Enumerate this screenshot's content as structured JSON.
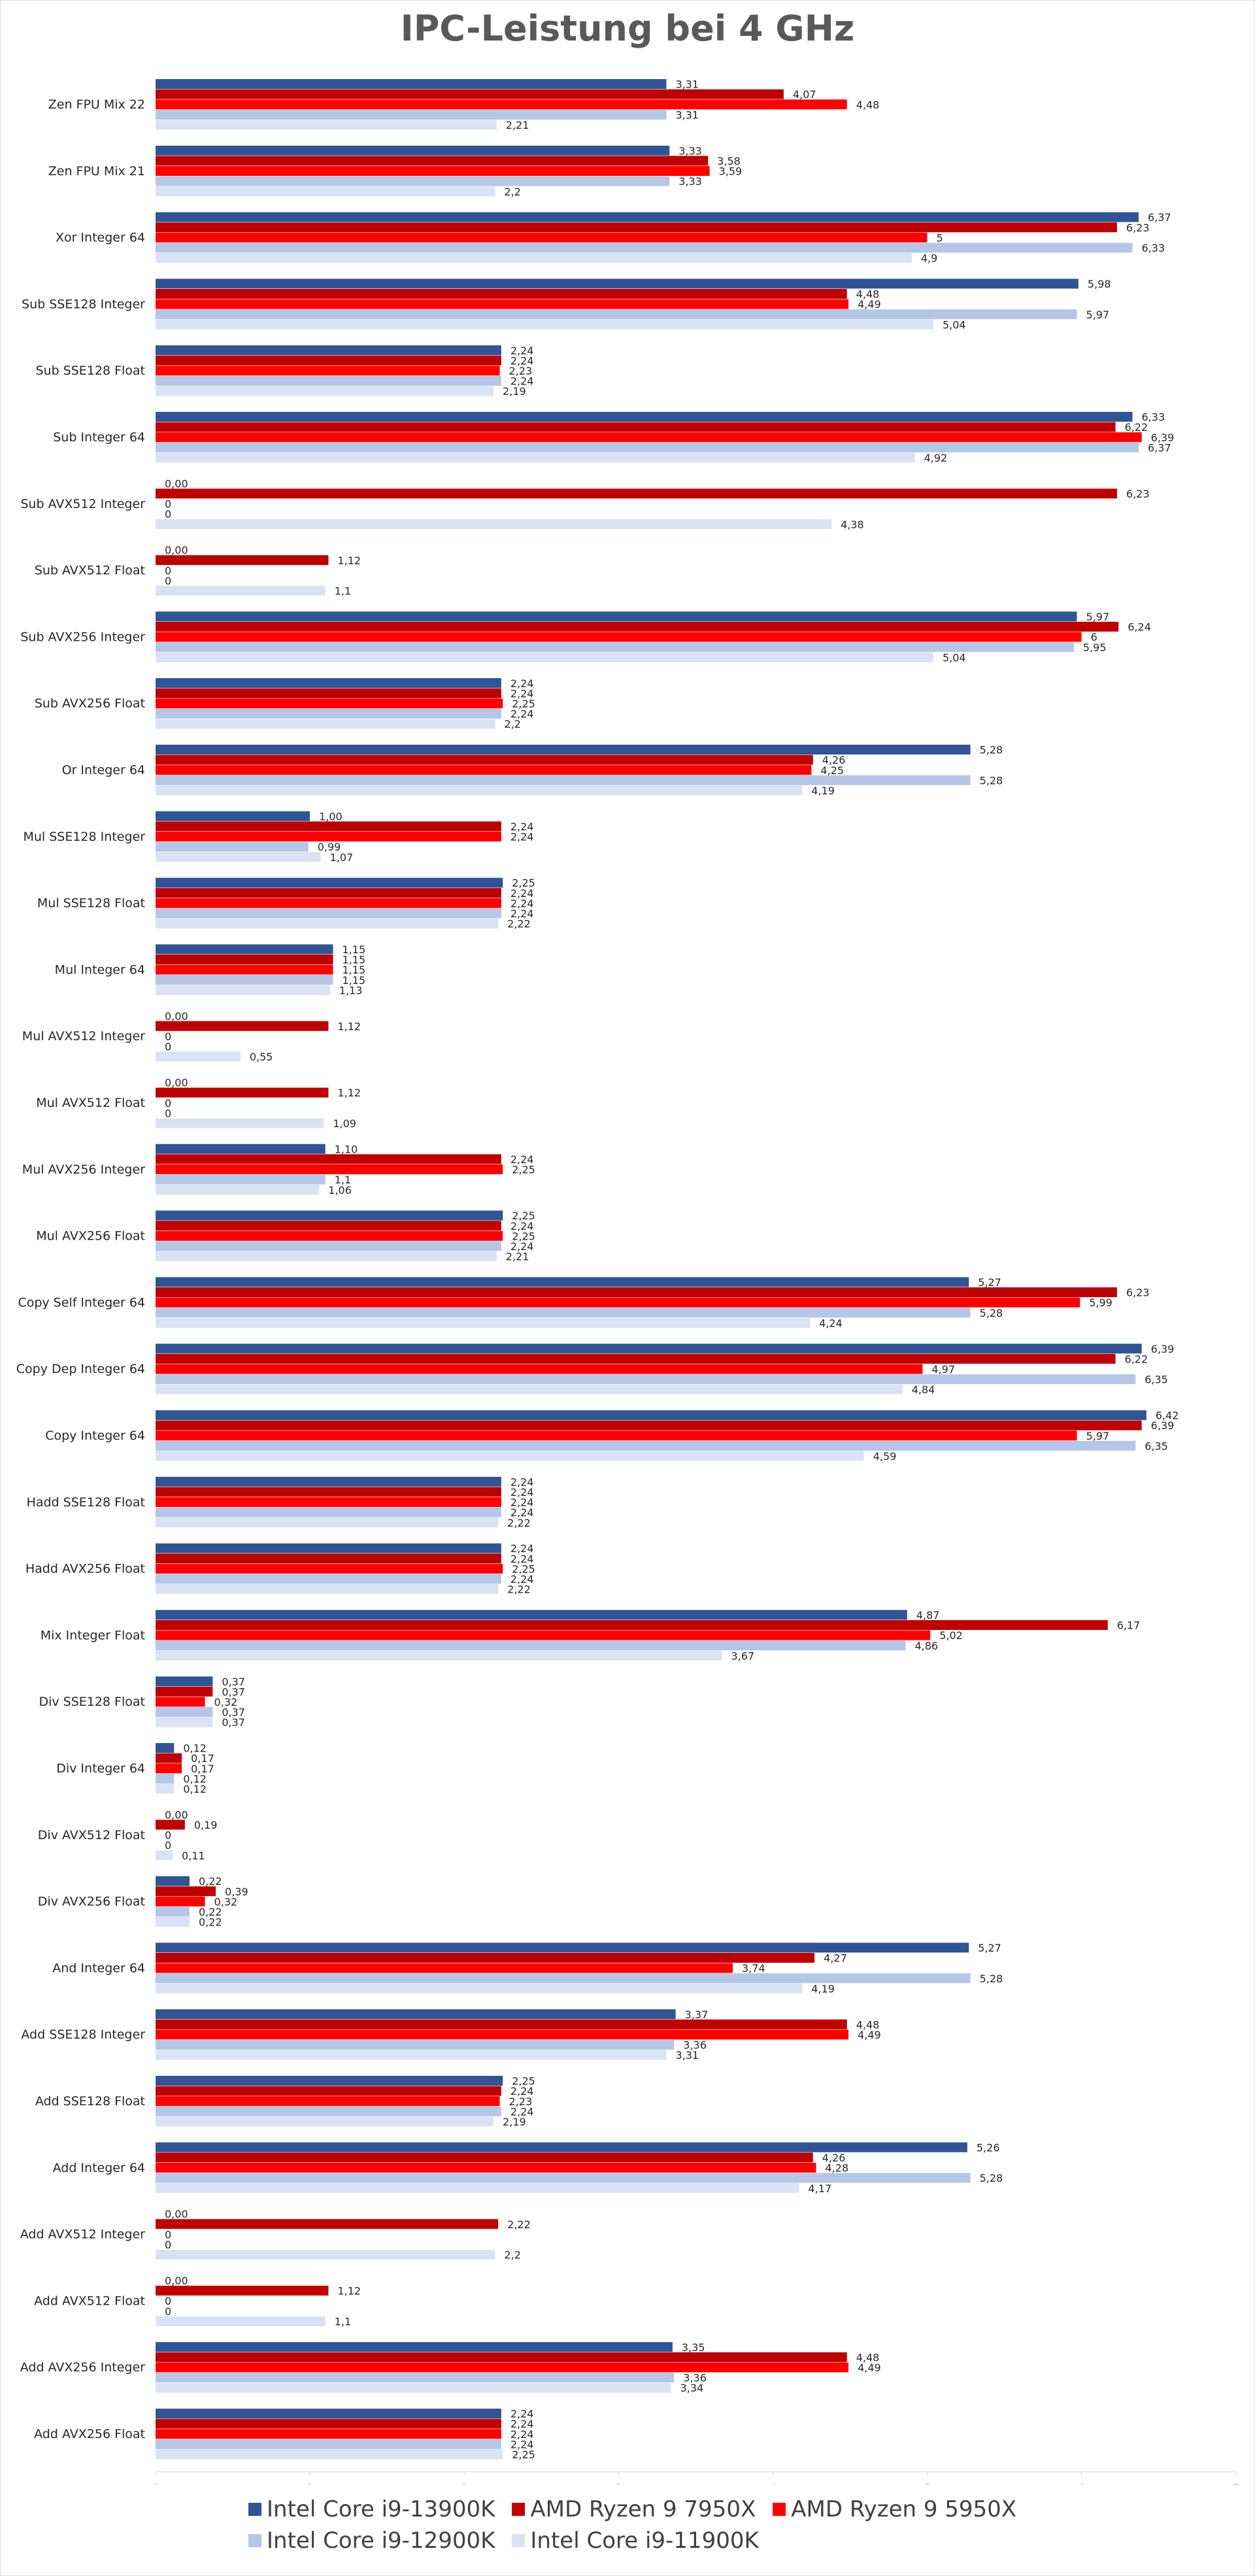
{
  "page": {
    "title": "IPC-Leistung bei 4 GHz"
  },
  "chart_data": {
    "type": "bar",
    "orientation": "horizontal",
    "title": "IPC-Leistung bei 4 GHz",
    "xlabel": "",
    "ylabel": "",
    "xlim": [
      0,
      7
    ],
    "x_ticks": [
      0,
      1,
      2,
      3,
      4,
      5,
      6,
      7
    ],
    "grid": false,
    "legend_position": "bottom",
    "categories": [
      "Zen FPU Mix 22",
      "Zen FPU Mix 21",
      "Xor Integer 64",
      "Sub SSE128 Integer",
      "Sub SSE128 Float",
      "Sub Integer 64",
      "Sub AVX512 Integer",
      "Sub AVX512 Float",
      "Sub AVX256 Integer",
      "Sub AVX256 Float",
      "Or Integer 64",
      "Mul SSE128 Integer",
      "Mul SSE128 Float",
      "Mul Integer 64",
      "Mul AVX512 Integer",
      "Mul AVX512 Float",
      "Mul AVX256 Integer",
      "Mul AVX256 Float",
      "Copy Self Integer 64",
      "Copy Dep Integer 64",
      "Copy Integer 64",
      "Hadd SSE128 Float",
      "Hadd AVX256 Float",
      "Mix Integer Float",
      "Div SSE128 Float",
      "Div Integer 64",
      "Div AVX512 Float",
      "Div AVX256 Float",
      "And Integer 64",
      "Add SSE128 Integer",
      "Add SSE128 Float",
      "Add Integer 64",
      "Add AVX512 Integer",
      "Add AVX512 Float",
      "Add AVX256 Integer",
      "Add AVX256 Float"
    ],
    "series": [
      {
        "name": "Intel Core i9-13900K",
        "color": "#2f5597",
        "values": [
          3.31,
          3.33,
          6.37,
          5.98,
          2.24,
          6.33,
          0,
          0,
          5.97,
          2.24,
          5.28,
          1.0,
          2.25,
          1.15,
          0,
          0,
          1.1,
          2.25,
          5.27,
          6.39,
          6.42,
          2.24,
          2.24,
          4.87,
          0.37,
          0.12,
          0,
          0.22,
          5.27,
          3.37,
          2.25,
          5.26,
          0,
          0,
          3.35,
          2.24
        ],
        "labels": [
          "3,31",
          "3,33",
          "6,37",
          "5,98",
          "2,24",
          "6,33",
          "0,00",
          "0,00",
          "5,97",
          "2,24",
          "5,28",
          "1,00",
          "2,25",
          "1,15",
          "0,00",
          "0,00",
          "1,10",
          "2,25",
          "5,27",
          "6,39",
          "6,42",
          "2,24",
          "2,24",
          "4,87",
          "0,37",
          "0,12",
          "0,00",
          "0,22",
          "5,27",
          "3,37",
          "2,25",
          "5,26",
          "0,00",
          "0,00",
          "3,35",
          "2,24"
        ]
      },
      {
        "name": "AMD Ryzen 9 7950X",
        "color": "#c00000",
        "values": [
          4.07,
          3.58,
          6.23,
          4.48,
          2.24,
          6.22,
          6.23,
          1.12,
          6.24,
          2.24,
          4.26,
          2.24,
          2.24,
          1.15,
          1.12,
          1.12,
          2.24,
          2.24,
          6.23,
          6.22,
          6.39,
          2.24,
          2.24,
          6.17,
          0.37,
          0.17,
          0.19,
          0.39,
          4.27,
          4.48,
          2.24,
          4.26,
          2.22,
          1.12,
          4.48,
          2.24
        ],
        "labels": [
          "4,07",
          "3,58",
          "6,23",
          "4,48",
          "2,24",
          "6,22",
          "6,23",
          "1,12",
          "6,24",
          "2,24",
          "4,26",
          "2,24",
          "2,24",
          "1,15",
          "1,12",
          "1,12",
          "2,24",
          "2,24",
          "6,23",
          "6,22",
          "6,39",
          "2,24",
          "2,24",
          "6,17",
          "0,37",
          "0,17",
          "0,19",
          "0,39",
          "4,27",
          "4,48",
          "2,24",
          "4,26",
          "2,22",
          "1,12",
          "4,48",
          "2,24"
        ]
      },
      {
        "name": "AMD Ryzen 9 5950X",
        "color": "#ff0000",
        "values": [
          4.48,
          3.59,
          5,
          4.49,
          2.23,
          6.39,
          0,
          0,
          6,
          2.25,
          4.25,
          2.24,
          2.24,
          1.15,
          0,
          0,
          2.25,
          2.25,
          5.99,
          4.97,
          5.97,
          2.24,
          2.25,
          5.02,
          0.32,
          0.17,
          0,
          0.32,
          3.74,
          4.49,
          2.23,
          4.28,
          0,
          0,
          4.49,
          2.24
        ],
        "labels": [
          "4,48",
          "3,59",
          "5",
          "4,49",
          "2,23",
          "6,39",
          "0",
          "0",
          "6",
          "2,25",
          "4,25",
          "2,24",
          "2,24",
          "1,15",
          "0",
          "0",
          "2,25",
          "2,25",
          "5,99",
          "4,97",
          "5,97",
          "2,24",
          "2,25",
          "5,02",
          "0,32",
          "0,17",
          "0",
          "0,32",
          "3,74",
          "4,49",
          "2,23",
          "4,28",
          "0",
          "0",
          "4,49",
          "2,24"
        ]
      },
      {
        "name": "Intel Core i9-12900K",
        "color": "#b4c7e7",
        "values": [
          3.31,
          3.33,
          6.33,
          5.97,
          2.24,
          6.37,
          0,
          0,
          5.95,
          2.24,
          5.28,
          0.99,
          2.24,
          1.15,
          0,
          0,
          1.1,
          2.24,
          5.28,
          6.35,
          6.35,
          2.24,
          2.24,
          4.86,
          0.37,
          0.12,
          0,
          0.22,
          5.28,
          3.36,
          2.24,
          5.28,
          0,
          0,
          3.36,
          2.24
        ],
        "labels": [
          "3,31",
          "3,33",
          "6,33",
          "5,97",
          "2,24",
          "6,37",
          "0",
          "0",
          "5,95",
          "2,24",
          "5,28",
          "0,99",
          "2,24",
          "1,15",
          "0",
          "0",
          "1,1",
          "2,24",
          "5,28",
          "6,35",
          "6,35",
          "2,24",
          "2,24",
          "4,86",
          "0,37",
          "0,12",
          "0",
          "0,22",
          "5,28",
          "3,36",
          "2,24",
          "5,28",
          "0",
          "0",
          "3,36",
          "2,24"
        ]
      },
      {
        "name": "Intel Core i9-11900K",
        "color": "#dae3f3",
        "values": [
          2.21,
          2.2,
          4.9,
          5.04,
          2.19,
          4.92,
          4.38,
          1.1,
          5.04,
          2.2,
          4.19,
          1.07,
          2.22,
          1.13,
          0.55,
          1.09,
          1.06,
          2.21,
          4.24,
          4.84,
          4.59,
          2.22,
          2.22,
          3.67,
          0.37,
          0.12,
          0.11,
          0.22,
          4.19,
          3.31,
          2.19,
          4.17,
          2.2,
          1.1,
          3.34,
          2.25
        ],
        "labels": [
          "2,21",
          "2,2",
          "4,9",
          "5,04",
          "2,19",
          "4,92",
          "4,38",
          "1,1",
          "5,04",
          "2,2",
          "4,19",
          "1,07",
          "2,22",
          "1,13",
          "0,55",
          "1,09",
          "1,06",
          "2,21",
          "4,24",
          "4,84",
          "4,59",
          "2,22",
          "2,22",
          "3,67",
          "0,37",
          "0,12",
          "0,11",
          "0,22",
          "4,19",
          "3,31",
          "2,19",
          "4,17",
          "2,2",
          "1,1",
          "3,34",
          "2,25"
        ]
      }
    ]
  },
  "legend": {
    "items": [
      {
        "label": "Intel Core i9-13900K",
        "color": "#2f5597"
      },
      {
        "label": "AMD Ryzen 9 7950X",
        "color": "#c00000"
      },
      {
        "label": "AMD Ryzen 9 5950X",
        "color": "#ff0000"
      },
      {
        "label": "Intel Core i9-12900K",
        "color": "#b4c7e7"
      },
      {
        "label": "Intel Core i9-11900K",
        "color": "#dae3f3"
      }
    ]
  }
}
